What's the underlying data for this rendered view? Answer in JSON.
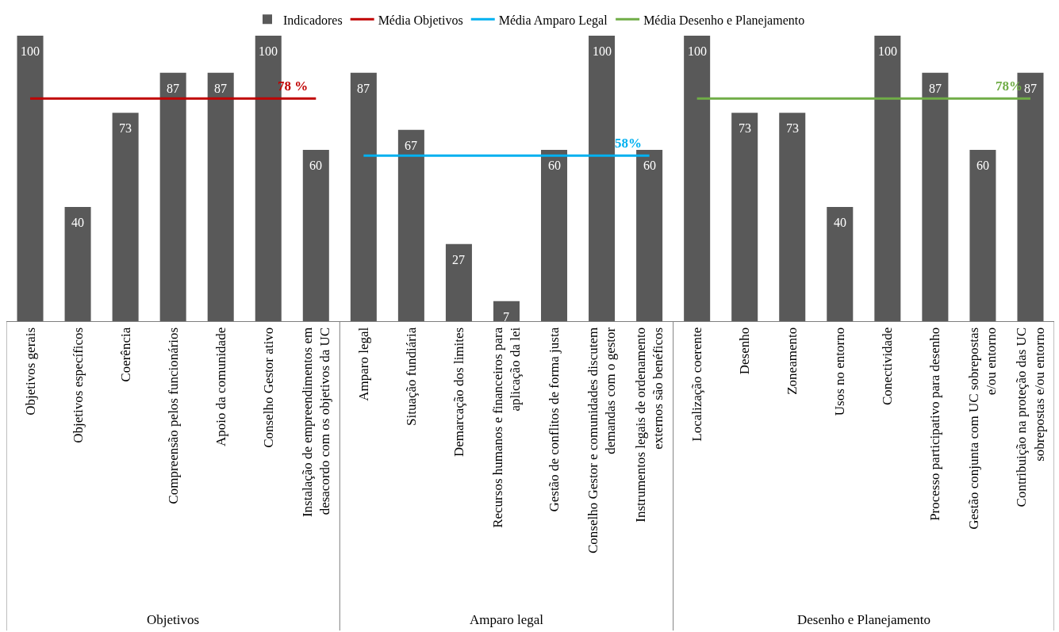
{
  "chart_data": {
    "type": "bar",
    "categories": [
      "Objetivos gerais",
      "Objetivos específicos",
      "Coerência",
      "Compreensão pelos funcionários",
      "Apoio da comunidade",
      "Conselho Gestor ativo",
      "Instalação de empreendimentos em desacordo com os objetivos da UC",
      "Amparo legal",
      "Situação fundiária",
      "Demarcação dos limites",
      "Recursos humanos e financeiros para aplicação da lei",
      "Gestão de conflitos de forma justa",
      "Conselho Gestor e comunidades discutem demandas com o gestor",
      "Instrumentos legais de ordenamento externos são benéficos",
      "Localização coerente",
      "Desenho",
      "Zoneamento",
      "Usos no entorno",
      "Conectividade",
      "Processo participativo para desenho",
      "Gestão conjunta com UC sobrepostas e/ou entorno",
      "Contribuição na proteção das UC sobrepostas e/ou entorno"
    ],
    "series": [
      {
        "name": "Indicadores",
        "color": "#595959",
        "values": [
          100,
          40,
          73,
          87,
          87,
          100,
          60,
          87,
          67,
          27,
          7,
          60,
          100,
          60,
          100,
          73,
          73,
          40,
          100,
          87,
          60,
          87
        ]
      },
      {
        "name": "Média Objetivos",
        "type": "line",
        "color": "#c00000",
        "values": [
          78,
          78,
          78,
          78,
          78,
          78,
          78,
          null,
          null,
          null,
          null,
          null,
          null,
          null,
          null,
          null,
          null,
          null,
          null,
          null,
          null,
          null
        ],
        "value_labels": [
          null,
          null,
          null,
          null,
          null,
          null,
          "78 %",
          null,
          null,
          null,
          null,
          null,
          null,
          null,
          null,
          null,
          null,
          null,
          null,
          null,
          null,
          null
        ]
      },
      {
        "name": "Média Amparo Legal",
        "type": "line",
        "color": "#00b0f0",
        "values": [
          null,
          null,
          null,
          null,
          null,
          null,
          null,
          58,
          58,
          58,
          58,
          58,
          58,
          58,
          null,
          null,
          null,
          null,
          null,
          null,
          null,
          null
        ],
        "value_labels": [
          null,
          null,
          null,
          null,
          null,
          null,
          null,
          null,
          null,
          null,
          null,
          null,
          null,
          "58%",
          null,
          null,
          null,
          null,
          null,
          null,
          null,
          null
        ]
      },
      {
        "name": "Média Desenho e Planejamento",
        "type": "line",
        "color": "#70ad47",
        "values": [
          null,
          null,
          null,
          null,
          null,
          null,
          null,
          null,
          null,
          null,
          null,
          null,
          null,
          null,
          78,
          78,
          78,
          78,
          78,
          78,
          78,
          78
        ],
        "value_labels": [
          null,
          null,
          null,
          null,
          null,
          null,
          null,
          null,
          null,
          null,
          null,
          null,
          null,
          null,
          null,
          null,
          null,
          null,
          null,
          null,
          null,
          "78%"
        ]
      }
    ],
    "annotations": [
      {
        "text": "Objetivos"
      },
      {
        "text": "Amparo legal"
      },
      {
        "text": "Desenho e Planejamento"
      }
    ],
    "data_labels": true,
    "grid": false,
    "legend": "top"
  }
}
